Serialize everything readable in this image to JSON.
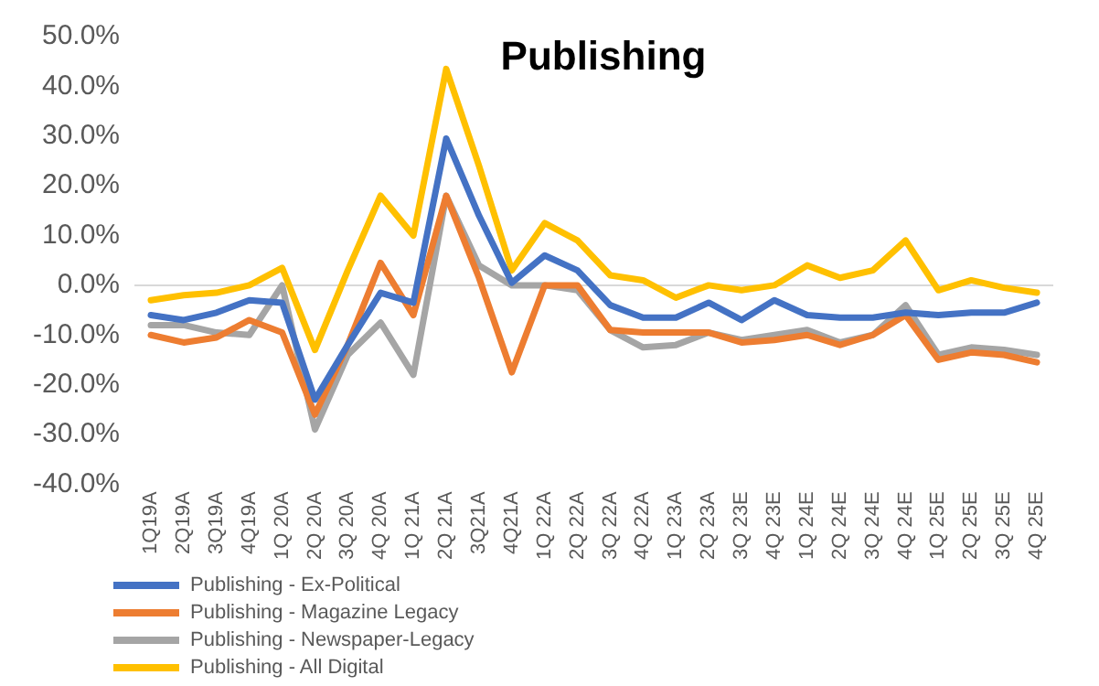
{
  "chart_data": {
    "type": "line",
    "title": "Publishing",
    "categories": [
      "1Q19A",
      "2Q19A",
      "3Q19A",
      "4Q19A",
      "1Q 20A",
      "2Q 20A",
      "3Q 20A",
      "4Q 20A",
      "1Q 21A",
      "2Q 21A",
      "3Q21A",
      "4Q21A",
      "1Q 22A",
      "2Q 22A",
      "3Q 22A",
      "4Q 22A",
      "1Q 23A",
      "2Q 23A",
      "3Q 23E",
      "4Q 23E",
      "1Q 24E",
      "2Q 24E",
      "3Q 24E",
      "4Q 24E",
      "1Q 25E",
      "2Q 25E",
      "3Q 25E",
      "4Q 25E"
    ],
    "series": [
      {
        "name": "Publishing - Ex-Political",
        "color": "#4472c4",
        "values": [
          -6,
          -7,
          -5.5,
          -3,
          -3.5,
          -23,
          -12,
          -1.5,
          -3.5,
          29.5,
          14,
          0.5,
          6,
          3,
          -4,
          -6.5,
          -6.5,
          -3.5,
          -7,
          -3,
          -6,
          -6.5,
          -6.5,
          -5.5,
          -6,
          -5.5,
          -5.5,
          -3.5
        ]
      },
      {
        "name": "Publishing - Magazine Legacy",
        "color": "#ed7d31",
        "values": [
          -10,
          -11.5,
          -10.5,
          -7,
          -9.5,
          -26,
          -12,
          4.5,
          -6,
          18,
          1.5,
          -17.5,
          0,
          0,
          -9,
          -9.5,
          -9.5,
          -9.5,
          -11.5,
          -11,
          -10,
          -12,
          -10,
          -6,
          -15,
          -13.5,
          -14,
          -15.5
        ]
      },
      {
        "name": "Publishing - Newspaper-Legacy",
        "color": "#a5a5a5",
        "values": [
          -8,
          -8,
          -9.5,
          -10,
          0,
          -29,
          -14,
          -7.5,
          -18,
          18,
          4,
          0,
          0,
          -1,
          -9,
          -12.5,
          -12,
          -9.5,
          -11,
          -10,
          -9,
          -11.5,
          -10,
          -4,
          -14,
          -12.5,
          -13,
          -14
        ]
      },
      {
        "name": "Publishing - All Digital",
        "color": "#ffc000",
        "values": [
          -3,
          -2,
          -1.5,
          0,
          3.5,
          -13,
          3,
          18,
          10,
          43.5,
          24,
          3,
          12.5,
          9,
          2,
          1,
          -2.5,
          0,
          -1,
          0,
          4,
          1.5,
          3,
          9,
          -1,
          1,
          -0.5,
          -1.5
        ]
      }
    ],
    "ylim": [
      -40,
      50
    ],
    "yticks": [
      {
        "value": -40,
        "label": "-40.0%"
      },
      {
        "value": -30,
        "label": "-30.0%"
      },
      {
        "value": -20,
        "label": "-20.0%"
      },
      {
        "value": -10,
        "label": "-10.0%"
      },
      {
        "value": 0,
        "label": "0.0%"
      },
      {
        "value": 10,
        "label": "10.0%"
      },
      {
        "value": 20,
        "label": "20.0%"
      },
      {
        "value": 30,
        "label": "30.0%"
      },
      {
        "value": 40,
        "label": "40.0%"
      },
      {
        "value": 50,
        "label": "50.0%"
      }
    ],
    "ref_lines": [
      {
        "axis": "y",
        "value": 0,
        "color": "#d9d9d9"
      }
    ],
    "grid": false,
    "legend": "bottom left",
    "marker": "none",
    "line_style": "solid"
  }
}
